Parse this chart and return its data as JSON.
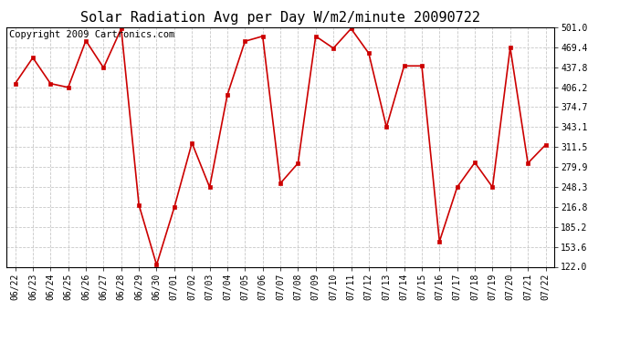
{
  "title": "Solar Radiation Avg per Day W/m2/minute 20090722",
  "copyright": "Copyright 2009 Cartronics.com",
  "dates": [
    "06/22",
    "06/23",
    "06/24",
    "06/25",
    "06/26",
    "06/27",
    "06/28",
    "06/29",
    "06/30",
    "07/01",
    "07/02",
    "07/03",
    "07/04",
    "07/05",
    "07/06",
    "07/07",
    "07/08",
    "07/09",
    "07/10",
    "07/11",
    "07/12",
    "07/13",
    "07/14",
    "07/15",
    "07/16",
    "07/17",
    "07/18",
    "07/19",
    "07/20",
    "07/21",
    "07/22"
  ],
  "values": [
    412,
    453,
    412,
    406,
    480,
    437,
    499,
    220,
    125,
    216,
    318,
    248,
    394,
    479,
    487,
    254,
    286,
    487,
    468,
    499,
    460,
    343,
    440,
    440,
    162,
    248,
    287,
    248,
    469,
    286,
    315
  ],
  "line_color": "#cc0000",
  "marker_color": "#cc0000",
  "bg_color": "#ffffff",
  "grid_color": "#c8c8c8",
  "ylim": [
    122.0,
    501.0
  ],
  "yticks": [
    122.0,
    153.6,
    185.2,
    216.8,
    248.3,
    279.9,
    311.5,
    343.1,
    374.7,
    406.2,
    437.8,
    469.4,
    501.0
  ],
  "title_fontsize": 11,
  "copyright_fontsize": 7.5,
  "tick_fontsize": 7
}
